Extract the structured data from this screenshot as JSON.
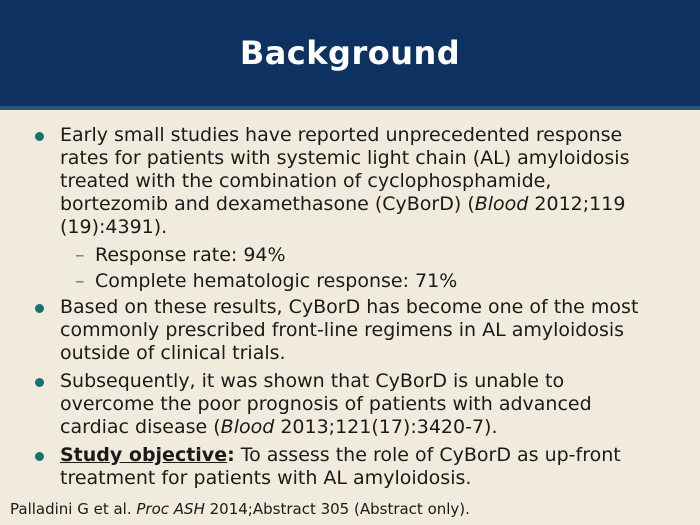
{
  "slide": {
    "title": "Background",
    "colors": {
      "header_bg": "#0D3262",
      "header_accent": "#2E5377",
      "body_bg": "#F0EBDC",
      "bullet": "#177173",
      "dash": "#2E8F8F",
      "text": "#1A1A1A",
      "title_text": "#FFFFFF"
    },
    "bullets": [
      {
        "level": 1,
        "marker": "•",
        "segments": [
          {
            "t": "Early small studies have reported unprecedented response rates for patients with systemic light chain (AL) amyloidosis treated with the combination of cyclophosphamide, bortezomib and dexamethasone (CyBorD) (",
            "style": "normal"
          },
          {
            "t": "Blood",
            "style": "italic"
          },
          {
            "t": " 2012;119 (19):4391).",
            "style": "normal"
          }
        ]
      },
      {
        "level": 2,
        "marker": "–",
        "segments": [
          {
            "t": "Response rate: 94%",
            "style": "normal"
          }
        ]
      },
      {
        "level": 2,
        "marker": "–",
        "segments": [
          {
            "t": "Complete hematologic response: 71%",
            "style": "normal"
          }
        ]
      },
      {
        "level": 1,
        "marker": "•",
        "segments": [
          {
            "t": "Based on these results, CyBorD has become one of the most commonly prescribed front-line regimens in AL amyloidosis outside of clinical trials.",
            "style": "normal"
          }
        ]
      },
      {
        "level": 1,
        "marker": "•",
        "segments": [
          {
            "t": "Subsequently, it was shown that CyBorD is unable to overcome the poor prognosis of patients with advanced cardiac disease (",
            "style": "normal"
          },
          {
            "t": "Blood",
            "style": "italic"
          },
          {
            "t": " 2013;121(17):3420-7).",
            "style": "normal"
          }
        ]
      },
      {
        "level": 1,
        "marker": "•",
        "segments": [
          {
            "t": "Study objective",
            "style": "bold-underline"
          },
          {
            "t": ":",
            "style": "bold"
          },
          {
            "t": " To assess the role of CyBorD as up-front treatment for patients with AL amyloidosis.",
            "style": "normal"
          }
        ]
      }
    ],
    "footer": {
      "segments": [
        {
          "t": "Palladini G et al. ",
          "style": "normal"
        },
        {
          "t": "Proc ASH",
          "style": "italic"
        },
        {
          "t": " 2014;Abstract 305 (Abstract only).",
          "style": "normal"
        }
      ]
    }
  }
}
